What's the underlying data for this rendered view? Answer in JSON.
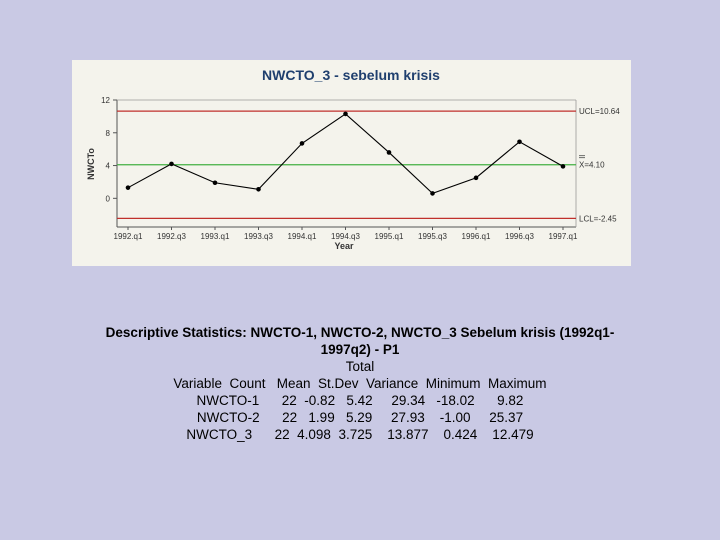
{
  "chart_data": {
    "type": "line",
    "title": "NWCTO_3 - sebelum krisis",
    "xlabel": "Year",
    "ylabel": "NWCTo",
    "ylim": [
      -3.5,
      12
    ],
    "yticks": [
      0,
      4,
      8,
      12
    ],
    "x_tick_labels": [
      "1992.q1",
      "1992.q3",
      "1993.q1",
      "1993.q3",
      "1994.q1",
      "1994.q3",
      "1995.q1",
      "1995.q3",
      "1996.q1",
      "1996.q3",
      "1997.q1"
    ],
    "x": [
      "1992.q1",
      "1992.q3",
      "1993.q1",
      "1993.q3",
      "1994.q1",
      "1994.q3",
      "1995.q1",
      "1995.q3",
      "1996.q1",
      "1996.q3",
      "1997.q1"
    ],
    "series": [
      {
        "values": [
          1.3,
          4.2,
          1.9,
          1.1,
          6.7,
          10.3,
          5.6,
          0.6,
          2.5,
          6.9,
          3.9
        ]
      }
    ],
    "control_lines": {
      "ucl": {
        "label": "UCL=10.64",
        "value": 10.64,
        "color": "#c0302c"
      },
      "center": {
        "label": "X=4.10",
        "value": 4.1,
        "color": "#43b043"
      },
      "lcl": {
        "label": "LCL=-2.45",
        "value": -2.45,
        "color": "#c0302c"
      }
    },
    "grid": false,
    "legend": "none",
    "line_color": "#000000",
    "panel_color": "#f4f3ec",
    "title_color": "#1f3f6e"
  },
  "stats": {
    "title_line1": "Descriptive Statistics: NWCTO-1, NWCTO-2, NWCTO_3 Sebelum krisis (1992q1-",
    "title_line2": "1997q2) - P1",
    "lines": [
      "Total",
      "Variable  Count   Mean  St.Dev  Variance  Minimum  Maximum",
      "NWCTO-1      22  -0.82   5.42     29.34   -18.02      9.82",
      "NWCTO-2      22   1.99   5.29     27.93    -1.00     25.37",
      "NWCTO_3      22  4.098  3.725    13.877    0.424    12.479"
    ]
  },
  "background_color": "#c9c9e4"
}
